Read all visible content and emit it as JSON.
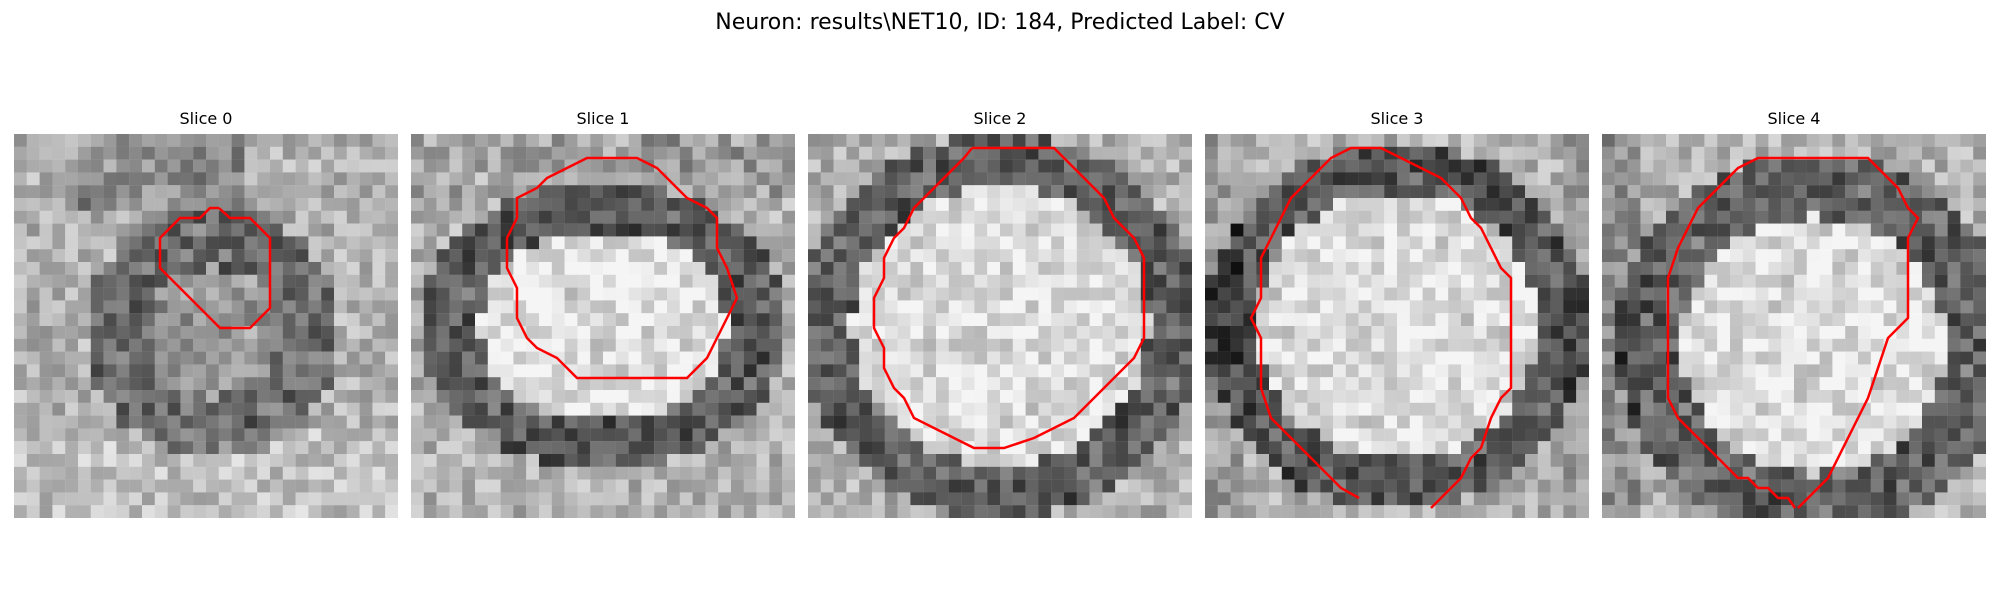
{
  "figure": {
    "title": "Neuron: results\\NET10, ID: 184, Predicted Label: CV"
  },
  "slices": [
    {
      "title": "Slice 0",
      "pattern": "small-vesicle",
      "contour_color": "#ff0000"
    },
    {
      "title": "Slice 1",
      "pattern": "ring-vesicle",
      "contour_color": "#ff0000"
    },
    {
      "title": "Slice 2",
      "pattern": "large-vesicle",
      "contour_color": "#ff0000"
    },
    {
      "title": "Slice 3",
      "pattern": "large-vesicle-dark",
      "contour_color": "#ff0000"
    },
    {
      "title": "Slice 4",
      "pattern": "large-vesicle-offset",
      "contour_color": "#ff0000"
    }
  ]
}
